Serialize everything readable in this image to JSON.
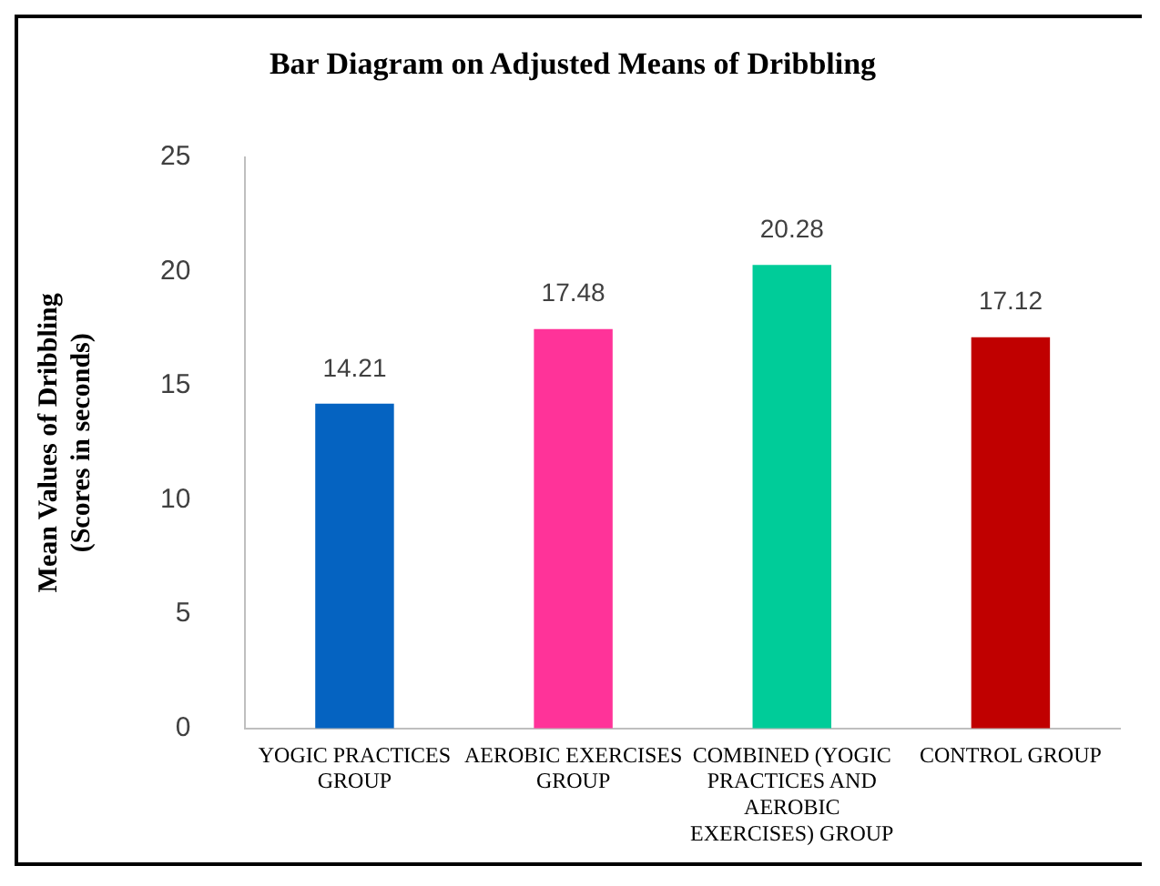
{
  "chart_data": {
    "type": "bar",
    "title": "Bar Diagram on Adjusted Means of Dribbling",
    "ylabel": "Mean Values of Dribbling (Scores in seconds)",
    "categories": [
      "YOGIC PRACTICES GROUP",
      "AEROBIC EXERCISES GROUP",
      "COMBINED (YOGIC PRACTICES AND AEROBIC EXERCISES) GROUP",
      "CONTROL GROUP"
    ],
    "values": [
      14.21,
      17.48,
      20.28,
      17.12
    ],
    "colors": [
      "#0563c1",
      "#ff3399",
      "#00cc99",
      "#c00000"
    ],
    "ylim": [
      0,
      25
    ],
    "yticks": [
      0,
      5,
      10,
      15,
      20,
      25
    ],
    "grid": false,
    "data_labels": true,
    "legend": false
  }
}
